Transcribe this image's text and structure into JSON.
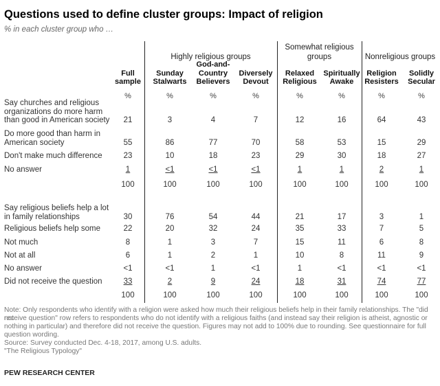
{
  "title": "Questions used to define cluster groups: Impact of religion",
  "subtitle": "% in each cluster group who …",
  "groups": {
    "highly": "Highly religious groups",
    "somewhat_1": "Somewhat religious",
    "somewhat_2": "groups",
    "non": "Nonreligious groups"
  },
  "columns": [
    {
      "l1": "",
      "l2": "Full",
      "l3": "sample"
    },
    {
      "l1": "",
      "l2": "Sunday",
      "l3": "Stalwarts"
    },
    {
      "l1": "God-and-",
      "l2": "Country",
      "l3": "Believers"
    },
    {
      "l1": "",
      "l2": "Diversely",
      "l3": "Devout"
    },
    {
      "l1": "",
      "l2": "Relaxed",
      "l3": "Religious"
    },
    {
      "l1": "",
      "l2": "Spiritually",
      "l3": "Awake"
    },
    {
      "l1": "",
      "l2": "Religion",
      "l3": "Resisters"
    },
    {
      "l1": "",
      "l2": "Solidly",
      "l3": "Secular"
    }
  ],
  "pct_symbol": "%",
  "rows": [
    {
      "l1": "Say churches and religious",
      "l2": "organizations do more harm",
      "l3": "than good in American society",
      "values": [
        "21",
        "3",
        "4",
        "7",
        "12",
        "16",
        "64",
        "43"
      ]
    },
    {
      "l1": "Do more good than harm in",
      "l2": "American society",
      "l3": "",
      "values": [
        "55",
        "86",
        "77",
        "70",
        "58",
        "53",
        "15",
        "29"
      ]
    },
    {
      "l1": "Don't make much difference",
      "l2": "",
      "l3": "",
      "values": [
        "23",
        "10",
        "18",
        "23",
        "29",
        "30",
        "18",
        "27"
      ]
    },
    {
      "l1": "No answer",
      "l2": "",
      "l3": "",
      "values": [
        "1",
        "<1",
        "<1",
        "<1",
        "1",
        "1",
        "2",
        "1"
      ]
    },
    {
      "l1": "",
      "l2": "",
      "l3": "",
      "values": [
        "100",
        "100",
        "100",
        "100",
        "100",
        "100",
        "100",
        "100"
      ]
    },
    {
      "l1": "Say religious beliefs help a lot",
      "l2": "in family relationships",
      "l3": "",
      "values": [
        "30",
        "76",
        "54",
        "44",
        "21",
        "17",
        "3",
        "1"
      ]
    },
    {
      "l1": "Religious beliefs help some",
      "l2": "",
      "l3": "",
      "values": [
        "22",
        "20",
        "32",
        "24",
        "35",
        "33",
        "7",
        "5"
      ]
    },
    {
      "l1": "Not much",
      "l2": "",
      "l3": "",
      "values": [
        "8",
        "1",
        "3",
        "7",
        "15",
        "11",
        "6",
        "8"
      ]
    },
    {
      "l1": "Not at all",
      "l2": "",
      "l3": "",
      "values": [
        "6",
        "1",
        "2",
        "1",
        "10",
        "8",
        "11",
        "9"
      ]
    },
    {
      "l1": "No answer",
      "l2": "",
      "l3": "",
      "values": [
        "<1",
        "<1",
        "1",
        "<1",
        "1",
        "<1",
        "<1",
        "<1"
      ]
    },
    {
      "l1": "Did not receive the question",
      "l2": "",
      "l3": "",
      "values": [
        "33",
        "2",
        "9",
        "24",
        "18",
        "31",
        "74",
        "77"
      ]
    },
    {
      "l1": "",
      "l2": "",
      "l3": "",
      "values": [
        "100",
        "100",
        "100",
        "100",
        "100",
        "100",
        "100",
        "100"
      ]
    }
  ],
  "notes": {
    "n1": "Note: Only respondents who identify with a religion were asked how much their religious beliefs help in their family relationships. The \"did not",
    "n2": "receive question\" row refers to respondents who do not identify with a religious faiths (and instead say their religion is atheist, agnostic or",
    "n3": "nothing in particular) and therefore did not receive the question. Figures may not add to 100% due to rounding. See questionnaire for full",
    "n4": "question wording.",
    "n5": "Source: Survey conducted Dec. 4-18, 2017, among U.S. adults.",
    "n6": "\"The Religious Typology\""
  },
  "brand": "PEW RESEARCH CENTER"
}
